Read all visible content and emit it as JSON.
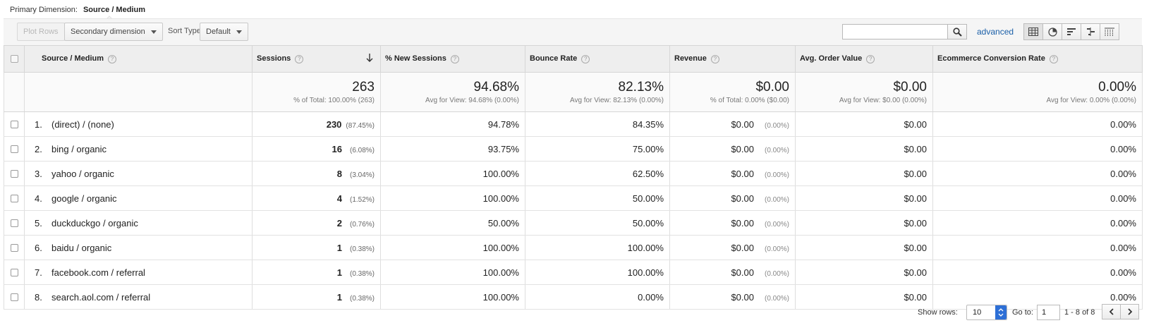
{
  "primary_dimension": {
    "label": "Primary Dimension:",
    "value": "Source / Medium"
  },
  "toolbar": {
    "plot_rows": "Plot Rows",
    "secondary_dimension": "Secondary dimension",
    "sort_type_label": "Sort Type:",
    "sort_type_value": "Default",
    "search_placeholder": "",
    "advanced": "advanced",
    "views": [
      "table-icon",
      "pie-icon",
      "bar-icon",
      "comparison-icon",
      "pivot-icon"
    ]
  },
  "columns": {
    "source_medium": "Source / Medium",
    "sessions": "Sessions",
    "new_sessions": "% New Sessions",
    "bounce_rate": "Bounce Rate",
    "revenue": "Revenue",
    "avg_order_value": "Avg. Order Value",
    "ecommerce_conversion_rate": "Ecommerce Conversion Rate",
    "help": "?"
  },
  "totals": {
    "sessions": {
      "value": "263",
      "sub": "% of Total: 100.00% (263)"
    },
    "new_sessions": {
      "value": "94.68%",
      "sub": "Avg for View: 94.68% (0.00%)"
    },
    "bounce_rate": {
      "value": "82.13%",
      "sub": "Avg for View: 82.13% (0.00%)"
    },
    "revenue": {
      "value": "$0.00",
      "sub": "% of Total: 0.00% ($0.00)"
    },
    "avg_order_value": {
      "value": "$0.00",
      "sub": "Avg for View: $0.00 (0.00%)"
    },
    "ecommerce_conversion_rate": {
      "value": "0.00%",
      "sub": "Avg for View: 0.00% (0.00%)"
    }
  },
  "rows": [
    {
      "index": "1.",
      "source": "(direct) / (none)",
      "sessions": "230",
      "sessions_pct": "(87.45%)",
      "new_sessions": "94.78%",
      "bounce_rate": "84.35%",
      "revenue": "$0.00",
      "revenue_pct": "(0.00%)",
      "avg_order_value": "$0.00",
      "conv_rate": "0.00%"
    },
    {
      "index": "2.",
      "source": "bing / organic",
      "sessions": "16",
      "sessions_pct": "(6.08%)",
      "new_sessions": "93.75%",
      "bounce_rate": "75.00%",
      "revenue": "$0.00",
      "revenue_pct": "(0.00%)",
      "avg_order_value": "$0.00",
      "conv_rate": "0.00%"
    },
    {
      "index": "3.",
      "source": "yahoo / organic",
      "sessions": "8",
      "sessions_pct": "(3.04%)",
      "new_sessions": "100.00%",
      "bounce_rate": "62.50%",
      "revenue": "$0.00",
      "revenue_pct": "(0.00%)",
      "avg_order_value": "$0.00",
      "conv_rate": "0.00%"
    },
    {
      "index": "4.",
      "source": "google / organic",
      "sessions": "4",
      "sessions_pct": "(1.52%)",
      "new_sessions": "100.00%",
      "bounce_rate": "50.00%",
      "revenue": "$0.00",
      "revenue_pct": "(0.00%)",
      "avg_order_value": "$0.00",
      "conv_rate": "0.00%"
    },
    {
      "index": "5.",
      "source": "duckduckgo / organic",
      "sessions": "2",
      "sessions_pct": "(0.76%)",
      "new_sessions": "50.00%",
      "bounce_rate": "50.00%",
      "revenue": "$0.00",
      "revenue_pct": "(0.00%)",
      "avg_order_value": "$0.00",
      "conv_rate": "0.00%"
    },
    {
      "index": "6.",
      "source": "baidu / organic",
      "sessions": "1",
      "sessions_pct": "(0.38%)",
      "new_sessions": "100.00%",
      "bounce_rate": "100.00%",
      "revenue": "$0.00",
      "revenue_pct": "(0.00%)",
      "avg_order_value": "$0.00",
      "conv_rate": "0.00%"
    },
    {
      "index": "7.",
      "source": "facebook.com / referral",
      "sessions": "1",
      "sessions_pct": "(0.38%)",
      "new_sessions": "100.00%",
      "bounce_rate": "100.00%",
      "revenue": "$0.00",
      "revenue_pct": "(0.00%)",
      "avg_order_value": "$0.00",
      "conv_rate": "0.00%"
    },
    {
      "index": "8.",
      "source": "search.aol.com / referral",
      "sessions": "1",
      "sessions_pct": "(0.38%)",
      "new_sessions": "100.00%",
      "bounce_rate": "0.00%",
      "revenue": "$0.00",
      "revenue_pct": "(0.00%)",
      "avg_order_value": "$0.00",
      "conv_rate": "0.00%"
    }
  ],
  "footer": {
    "show_rows_label": "Show rows:",
    "show_rows_value": "10",
    "goto_label": "Go to:",
    "goto_value": "1",
    "range": "1 - 8 of 8"
  }
}
